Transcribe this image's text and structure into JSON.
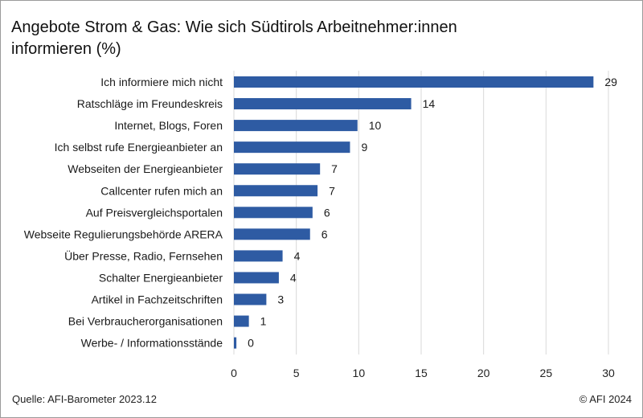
{
  "chart_data": {
    "type": "bar",
    "orientation": "horizontal",
    "title": "Angebote Strom & Gas: Wie sich Südtirols Arbeitnehmer:innen informieren (%)",
    "categories": [
      "Ich informiere mich nicht",
      "Ratschläge im Freundeskreis",
      "Internet, Blogs, Foren",
      "Ich selbst rufe Energieanbieter an",
      "Webseiten der Energieanbieter",
      "Callcenter rufen mich an",
      "Auf Preisvergleichsportalen",
      "Webseite Regulierungsbehörde ARERA",
      "Über Presse, Radio, Fernsehen",
      "Schalter Energieanbieter",
      "Artikel in Fachzeitschriften",
      "Bei Verbraucherorganisationen",
      "Werbe- / Informationsstände"
    ],
    "values": [
      29,
      14,
      10,
      9,
      7,
      7,
      6,
      6,
      4,
      4,
      3,
      1,
      0
    ],
    "plot_values": [
      28.8,
      14.2,
      9.9,
      9.3,
      6.9,
      6.7,
      6.3,
      6.1,
      3.9,
      3.6,
      2.6,
      1.2,
      0.2
    ],
    "xlim": [
      0,
      30
    ],
    "xticks": [
      0,
      5,
      10,
      15,
      20,
      25,
      30
    ],
    "grid": "vertical",
    "bar_color": "#2e5ba3",
    "grid_color": "#d9d9d9"
  },
  "footer": {
    "source": "Quelle: AFI-Barometer  2023.12",
    "copyright": "© AFI 2024"
  }
}
